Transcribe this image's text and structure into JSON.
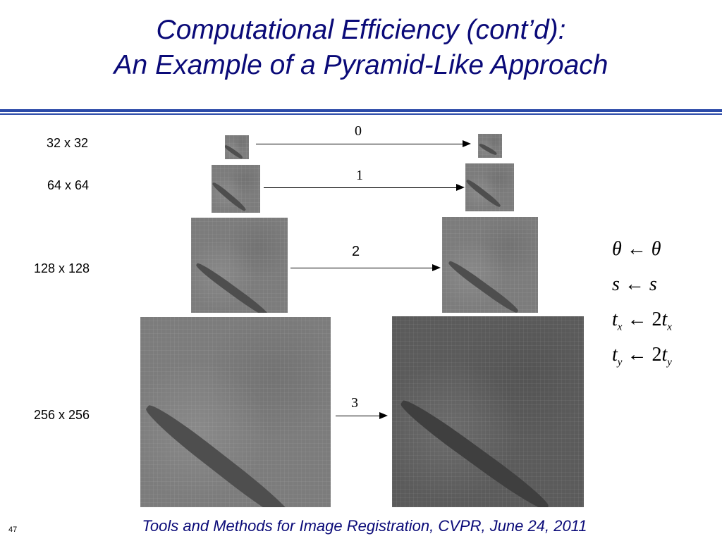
{
  "title": {
    "line1": "Computational Efficiency (cont’d):",
    "line2": "An Example of a Pyramid-Like Approach"
  },
  "levels": [
    {
      "size_label": "32 x 32",
      "arrow_label": "0"
    },
    {
      "size_label": "64 x 64",
      "arrow_label": "1"
    },
    {
      "size_label": "128 x 128",
      "arrow_label": "2"
    },
    {
      "size_label": "256 x 256",
      "arrow_label": "3"
    }
  ],
  "equations": [
    {
      "lhs": "θ",
      "lhs_sub": "",
      "arrow": "←",
      "rhs_coef": "",
      "rhs": "θ",
      "rhs_sub": ""
    },
    {
      "lhs": "s",
      "lhs_sub": "",
      "arrow": "←",
      "rhs_coef": "",
      "rhs": "s",
      "rhs_sub": ""
    },
    {
      "lhs": "t",
      "lhs_sub": "x",
      "arrow": "←",
      "rhs_coef": "2",
      "rhs": "t",
      "rhs_sub": "x"
    },
    {
      "lhs": "t",
      "lhs_sub": "y",
      "arrow": "←",
      "rhs_coef": "2",
      "rhs": "t",
      "rhs_sub": "y"
    }
  ],
  "footer": "Tools and Methods for Image Registration, CVPR, June 24, 2011",
  "page_number": "47"
}
